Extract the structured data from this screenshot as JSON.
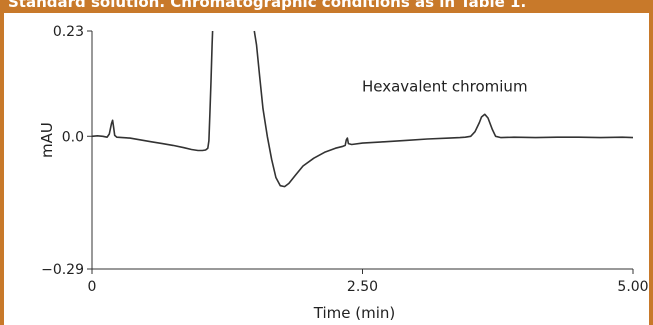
{
  "header": {
    "caption": "Standard solution. Chromatographic conditions as in Table 1."
  },
  "colors": {
    "frame": "#c8792a",
    "trace": "#333333",
    "axis": "#333333"
  },
  "chart_data": {
    "type": "line",
    "xlabel": "Time (min)",
    "ylabel": "mAU",
    "xlim": [
      0,
      5.0
    ],
    "ylim": [
      -0.29,
      0.23
    ],
    "x_ticks": [
      {
        "value": 0,
        "label": "0"
      },
      {
        "value": 2.5,
        "label": "2.50"
      },
      {
        "value": 5.0,
        "label": "5.00"
      }
    ],
    "y_ticks": [
      {
        "value": 0.23,
        "label": "0.23"
      },
      {
        "value": 0.0,
        "label": "0.0"
      },
      {
        "value": -0.29,
        "label": "−0.29"
      }
    ],
    "annotations": [
      {
        "text": "Hexavalent chromium",
        "x": 3.63,
        "y": 0.072
      }
    ],
    "series": [
      {
        "points": [
          [
            0.0,
            0.0
          ],
          [
            0.05,
            0.001
          ],
          [
            0.1,
            0.0
          ],
          [
            0.14,
            -0.002
          ],
          [
            0.16,
            0.005
          ],
          [
            0.18,
            0.028
          ],
          [
            0.19,
            0.035
          ],
          [
            0.2,
            0.02
          ],
          [
            0.21,
            0.002
          ],
          [
            0.23,
            -0.002
          ],
          [
            0.28,
            -0.003
          ],
          [
            0.35,
            -0.004
          ],
          [
            0.45,
            -0.008
          ],
          [
            0.55,
            -0.012
          ],
          [
            0.65,
            -0.016
          ],
          [
            0.75,
            -0.02
          ],
          [
            0.85,
            -0.025
          ],
          [
            0.92,
            -0.029
          ],
          [
            0.98,
            -0.031
          ],
          [
            1.02,
            -0.031
          ],
          [
            1.05,
            -0.03
          ],
          [
            1.07,
            -0.026
          ],
          [
            1.08,
            -0.01
          ],
          [
            1.09,
            0.05
          ],
          [
            1.1,
            0.12
          ],
          [
            1.11,
            0.2
          ],
          [
            1.115,
            0.25
          ],
          null,
          [
            1.5,
            0.25
          ],
          [
            1.52,
            0.2
          ],
          [
            1.55,
            0.13
          ],
          [
            1.58,
            0.06
          ],
          [
            1.62,
            0.0
          ],
          [
            1.66,
            -0.05
          ],
          [
            1.7,
            -0.09
          ],
          [
            1.74,
            -0.108
          ],
          [
            1.78,
            -0.11
          ],
          [
            1.82,
            -0.103
          ],
          [
            1.88,
            -0.085
          ],
          [
            1.95,
            -0.065
          ],
          [
            2.05,
            -0.048
          ],
          [
            2.15,
            -0.035
          ],
          [
            2.25,
            -0.026
          ],
          [
            2.32,
            -0.022
          ],
          [
            2.34,
            -0.02
          ],
          [
            2.35,
            -0.008
          ],
          [
            2.36,
            -0.004
          ],
          [
            2.37,
            -0.016
          ],
          [
            2.4,
            -0.018
          ],
          [
            2.5,
            -0.015
          ],
          [
            2.7,
            -0.012
          ],
          [
            2.9,
            -0.009
          ],
          [
            3.1,
            -0.006
          ],
          [
            3.3,
            -0.004
          ],
          [
            3.4,
            -0.003
          ],
          [
            3.45,
            -0.002
          ],
          [
            3.5,
            0.0
          ],
          [
            3.54,
            0.01
          ],
          [
            3.58,
            0.03
          ],
          [
            3.6,
            0.042
          ],
          [
            3.63,
            0.048
          ],
          [
            3.66,
            0.04
          ],
          [
            3.7,
            0.015
          ],
          [
            3.73,
            0.0
          ],
          [
            3.78,
            -0.003
          ],
          [
            3.9,
            -0.002
          ],
          [
            4.1,
            -0.003
          ],
          [
            4.3,
            -0.002
          ],
          [
            4.5,
            -0.002
          ],
          [
            4.7,
            -0.003
          ],
          [
            4.9,
            -0.002
          ],
          [
            5.0,
            -0.003
          ]
        ]
      }
    ]
  }
}
